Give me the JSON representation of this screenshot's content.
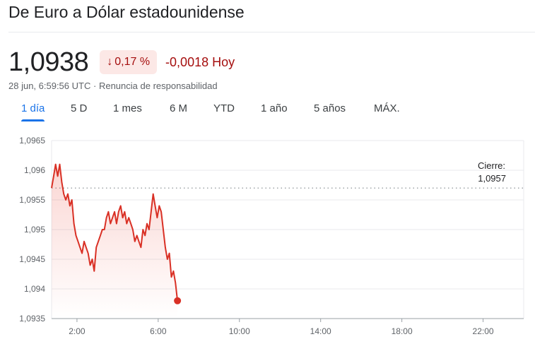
{
  "header": {
    "title": "De Euro a Dólar estadounidense"
  },
  "quote": {
    "price": "1,0938",
    "change_arrow": "↓",
    "change_percent": "0,17 %",
    "change_abs": "-0,0018",
    "change_period": "Hoy",
    "timestamp": "28 jun, 6:59:56 UTC",
    "separator": "·",
    "disclaimer": "Renuncia de responsabilidad",
    "negative_color": "#a50e0e",
    "badge_bg": "#fce8e6"
  },
  "tabs": [
    {
      "label": "1 día",
      "active": true
    },
    {
      "label": "5 D",
      "active": false
    },
    {
      "label": "1 mes",
      "active": false
    },
    {
      "label": "6 M",
      "active": false
    },
    {
      "label": "YTD",
      "active": false
    },
    {
      "label": "1 año",
      "active": false
    },
    {
      "label": "5 años",
      "active": false
    },
    {
      "label": "MÁX.",
      "active": false
    }
  ],
  "chart_data": {
    "type": "line",
    "title": "",
    "xlabel": "",
    "ylabel": "",
    "x_unit": "hour_utc",
    "xlim": [
      0.75,
      24.0
    ],
    "ylim": [
      1.0935,
      1.0965
    ],
    "x_ticks": [
      {
        "value": 2,
        "label": "2:00"
      },
      {
        "value": 6,
        "label": "6:00"
      },
      {
        "value": 10,
        "label": "10:00"
      },
      {
        "value": 14,
        "label": "14:00"
      },
      {
        "value": 18,
        "label": "18:00"
      },
      {
        "value": 22,
        "label": "22:00"
      }
    ],
    "y_ticks": [
      {
        "value": 1.0935,
        "label": "1,0935"
      },
      {
        "value": 1.094,
        "label": "1,094"
      },
      {
        "value": 1.0945,
        "label": "1,0945"
      },
      {
        "value": 1.095,
        "label": "1,095"
      },
      {
        "value": 1.0955,
        "label": "1,0955"
      },
      {
        "value": 1.096,
        "label": "1,096"
      },
      {
        "value": 1.0965,
        "label": "1,0965"
      }
    ],
    "grid": true,
    "previous_close": {
      "value": 1.0957,
      "label": "Cierre:",
      "value_label": "1,0957"
    },
    "line_color": "#d93025",
    "series": [
      {
        "x": [
          0.75,
          0.85,
          0.95,
          1.05,
          1.15,
          1.25,
          1.35,
          1.45,
          1.55,
          1.65,
          1.75,
          1.85,
          1.95,
          2.05,
          2.15,
          2.25,
          2.35,
          2.45,
          2.55,
          2.65,
          2.75,
          2.85,
          2.95,
          3.05,
          3.15,
          3.25,
          3.35,
          3.45,
          3.55,
          3.65,
          3.75,
          3.85,
          3.95,
          4.05,
          4.15,
          4.25,
          4.35,
          4.45,
          4.55,
          4.65,
          4.75,
          4.85,
          4.95,
          5.05,
          5.15,
          5.25,
          5.35,
          5.45,
          5.55,
          5.65,
          5.75,
          5.85,
          5.95,
          6.05,
          6.15,
          6.25,
          6.35,
          6.45,
          6.55,
          6.65,
          6.75,
          6.85,
          6.95
        ],
        "values": [
          1.0957,
          1.0959,
          1.0961,
          1.0959,
          1.0961,
          1.0958,
          1.0956,
          1.0955,
          1.0956,
          1.0954,
          1.0955,
          1.0951,
          1.0949,
          1.0948,
          1.0947,
          1.0946,
          1.0948,
          1.0947,
          1.0946,
          1.0944,
          1.0945,
          1.0943,
          1.0947,
          1.0948,
          1.0949,
          1.095,
          1.095,
          1.0952,
          1.0953,
          1.0951,
          1.0952,
          1.0953,
          1.0951,
          1.0953,
          1.0954,
          1.0952,
          1.0953,
          1.0951,
          1.0952,
          1.0951,
          1.095,
          1.0948,
          1.0949,
          1.0948,
          1.0947,
          1.095,
          1.0949,
          1.0951,
          1.095,
          1.0953,
          1.0956,
          1.0954,
          1.0952,
          1.0954,
          1.0953,
          1.095,
          1.0947,
          1.0945,
          1.0946,
          1.0942,
          1.0943,
          1.0941,
          1.0938
        ]
      }
    ]
  }
}
